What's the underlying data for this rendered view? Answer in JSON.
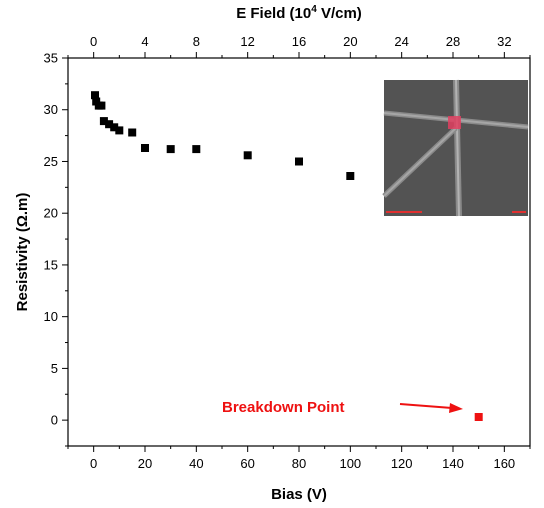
{
  "chart_data": {
    "type": "scatter",
    "xlabel": "Bias (V)",
    "ylabel": "Resistivity (Ω.m)",
    "top_xlabel": "E Field (10",
    "top_xlabel_sup": "4",
    "top_xlabel_tail": " V/cm)",
    "xlim": [
      -10,
      170
    ],
    "ylim": [
      -2.5,
      35
    ],
    "x_ticks": [
      0,
      20,
      40,
      60,
      80,
      100,
      120,
      140,
      160
    ],
    "y_ticks": [
      0,
      5,
      10,
      15,
      20,
      25,
      30,
      35
    ],
    "top_ticks": [
      0,
      4,
      8,
      12,
      16,
      20,
      24,
      28,
      32
    ],
    "top_axis_scale": 0.2,
    "grid": false,
    "series": [
      {
        "color": "#000000",
        "marker": "square",
        "points": [
          {
            "x": 0.5,
            "y": 31.4
          },
          {
            "x": 1,
            "y": 30.8
          },
          {
            "x": 2,
            "y": 30.4
          },
          {
            "x": 3,
            "y": 30.4
          },
          {
            "x": 4,
            "y": 28.9
          },
          {
            "x": 6,
            "y": 28.6
          },
          {
            "x": 8,
            "y": 28.3
          },
          {
            "x": 10,
            "y": 28.0
          },
          {
            "x": 15,
            "y": 27.8
          },
          {
            "x": 20,
            "y": 26.3
          },
          {
            "x": 30,
            "y": 26.2
          },
          {
            "x": 40,
            "y": 26.2
          },
          {
            "x": 60,
            "y": 25.6
          },
          {
            "x": 80,
            "y": 25.0
          },
          {
            "x": 100,
            "y": 23.6
          }
        ]
      },
      {
        "color": "#ee1111",
        "marker": "square",
        "points": [
          {
            "x": 150,
            "y": 0.3
          }
        ]
      }
    ],
    "annotations": [
      {
        "text": "Breakdown Point",
        "color": "#ee1111",
        "target": {
          "x": 150,
          "y": 0.3
        }
      }
    ]
  },
  "inset": {
    "icon": "nanowire-micrograph-icon",
    "background_color": "#595959",
    "highlight_color": "#e04060"
  }
}
